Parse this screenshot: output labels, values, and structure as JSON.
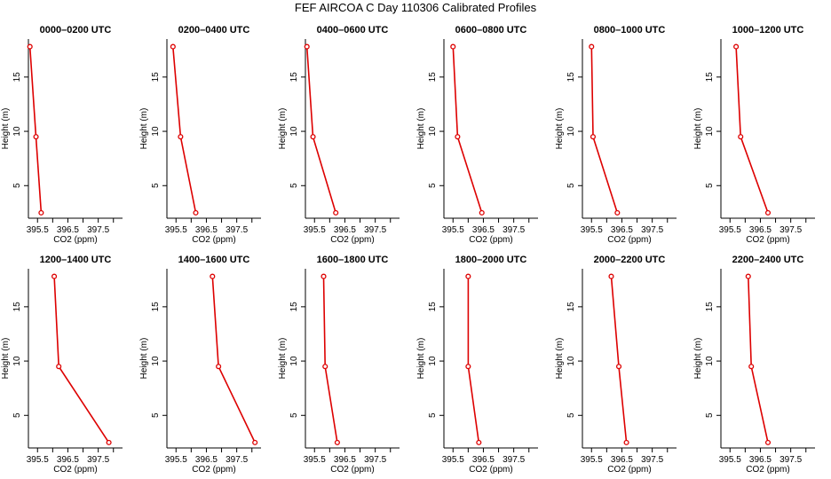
{
  "title": "FEF AIRCOA C  Day 110306  Calibrated Profiles",
  "colors": {
    "series": "#dd0000",
    "axis": "#000000",
    "background": "#ffffff"
  },
  "chart_data": {
    "type": "line",
    "xlabel": "CO2 (ppm)",
    "ylabel": "Height (m)",
    "xlim": [
      395.2,
      398.3
    ],
    "ylim": [
      2.0,
      18.5
    ],
    "xticks": [
      "395.5",
      "396.5",
      "397.5"
    ],
    "xtick_values": [
      395.5,
      396.0,
      396.5,
      397.0,
      397.5,
      398.0
    ],
    "yticks": [
      "5",
      "10",
      "15"
    ],
    "ytick_values": [
      5,
      10,
      15
    ],
    "heights": [
      17.8,
      9.5,
      2.5
    ],
    "panels": [
      {
        "title": "0000–0200 UTC",
        "co2": [
          395.25,
          395.45,
          395.62
        ]
      },
      {
        "title": "0200–0400 UTC",
        "co2": [
          395.4,
          395.65,
          396.15
        ]
      },
      {
        "title": "0400–0600 UTC",
        "co2": [
          395.25,
          395.45,
          396.2
        ]
      },
      {
        "title": "0600–0800 UTC",
        "co2": [
          395.5,
          395.65,
          396.45
        ]
      },
      {
        "title": "0800–1000 UTC",
        "co2": [
          395.5,
          395.55,
          396.35
        ]
      },
      {
        "title": "1000–1200 UTC",
        "co2": [
          395.7,
          395.85,
          396.75
        ]
      },
      {
        "title": "1200–1400 UTC",
        "co2": [
          396.05,
          396.2,
          397.85
        ]
      },
      {
        "title": "1400–1600 UTC",
        "co2": [
          396.7,
          396.9,
          398.1
        ]
      },
      {
        "title": "1600–1800 UTC",
        "co2": [
          395.8,
          395.85,
          396.25
        ]
      },
      {
        "title": "1800–2000 UTC",
        "co2": [
          396.0,
          396.0,
          396.35
        ]
      },
      {
        "title": "2000–2200 UTC",
        "co2": [
          396.15,
          396.4,
          396.65
        ]
      },
      {
        "title": "2200–2400 UTC",
        "co2": [
          396.1,
          396.2,
          396.75
        ]
      }
    ]
  }
}
